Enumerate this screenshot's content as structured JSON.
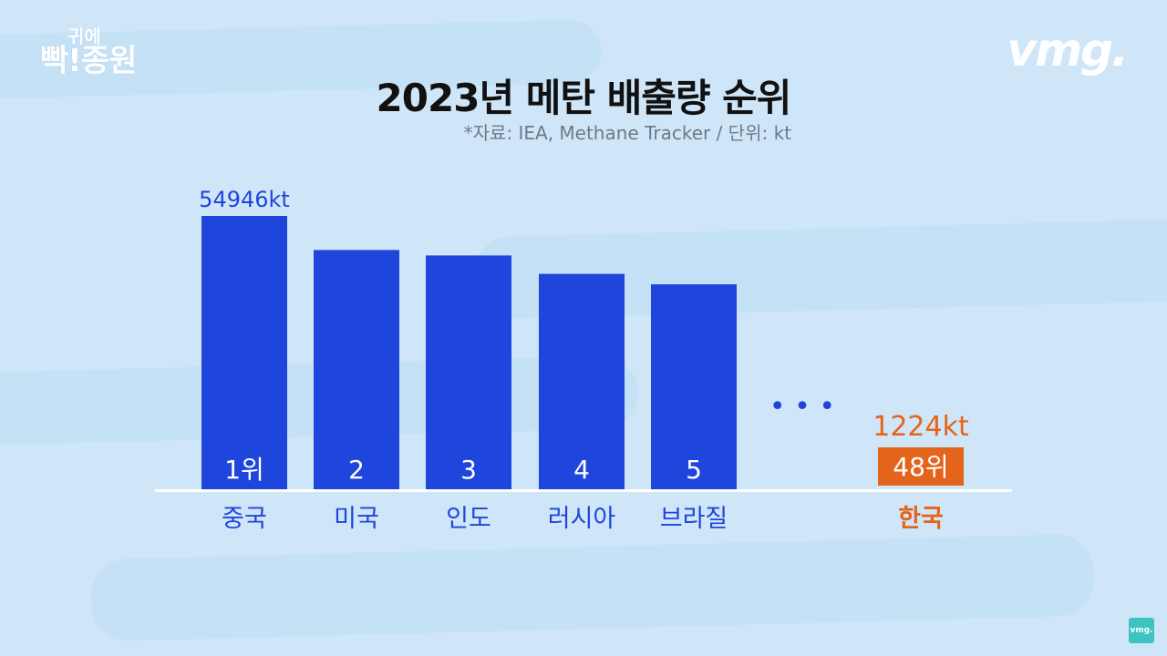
{
  "brand_left": {
    "line1": "귀에",
    "line2": "빡!종원"
  },
  "brand_right": "vmg.",
  "corner_badge": "vmg.",
  "colors": {
    "bar": "#1f46dc",
    "highlight": "#e4641c",
    "axis": "#ffffff"
  },
  "chart_data": {
    "type": "bar",
    "title": "2023년 메탄 배출량 순위",
    "subtitle": "*자료: IEA, Methane Tracker / 단위: kt",
    "categories": [
      "중국",
      "미국",
      "인도",
      "러시아",
      "브라질",
      "한국"
    ],
    "ranks": [
      "1위",
      "2",
      "3",
      "4",
      "5",
      "48위"
    ],
    "values": [
      54946,
      48100,
      47000,
      43300,
      41200,
      1224
    ],
    "value_labels": [
      "54946kt",
      "",
      "",
      "",
      "",
      "1224kt"
    ],
    "highlight_category": "한국",
    "ellipsis": "• • •",
    "ylim": [
      0,
      54946
    ]
  }
}
